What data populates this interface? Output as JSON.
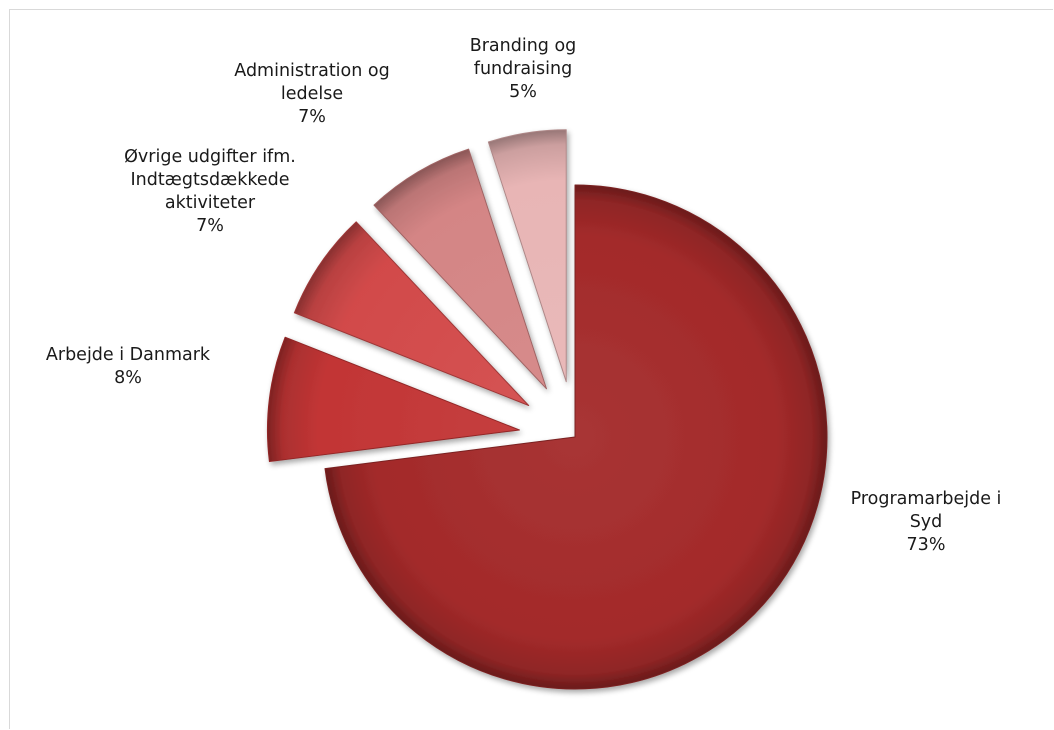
{
  "chart_data": {
    "type": "pie",
    "title": "",
    "exploded": true,
    "style": "3d-gradient",
    "legend": "none",
    "slices": [
      {
        "category": "Programarbejde i Syd",
        "value": 73,
        "label_lines": [
          "Programarbejde i",
          "Syd"
        ],
        "pct_label": "73%",
        "color": "#a32a2a"
      },
      {
        "category": "Arbejde i Danmark",
        "value": 8,
        "label_lines": [
          "Arbejde i Danmark"
        ],
        "pct_label": "8%",
        "color": "#c23535"
      },
      {
        "category": "Øvrige udgifter ifm. Indtægtsdækkede aktiviteter",
        "value": 7,
        "label_lines": [
          "Øvrige udgifter ifm.",
          "Indtægtsdækkede",
          "aktiviteter"
        ],
        "pct_label": "7%",
        "color": "#d24a4a"
      },
      {
        "category": "Administration og ledelse",
        "value": 7,
        "label_lines": [
          "Administration og",
          "ledelse"
        ],
        "pct_label": "7%",
        "color": "#d48585"
      },
      {
        "category": "Branding og fundraising",
        "value": 5,
        "label_lines": [
          "Branding og",
          "fundraising"
        ],
        "pct_label": "5%",
        "color": "#e8b5b5"
      }
    ]
  }
}
